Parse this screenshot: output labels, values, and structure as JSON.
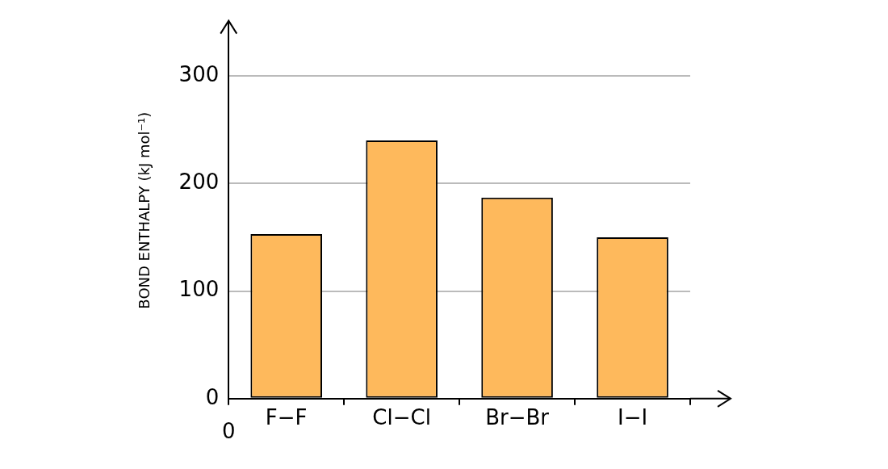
{
  "chart_data": {
    "type": "bar",
    "y_label": "BOND ENTHALPY (kJ mol⁻¹)",
    "categories": [
      "F−F",
      "Cl−Cl",
      "Br−Br",
      "I−I"
    ],
    "values": [
      153,
      240,
      187,
      150
    ],
    "color": "#feb95c",
    "ylim": [
      0,
      350
    ],
    "yticks": [
      0,
      100,
      200,
      300
    ],
    "grid": true,
    "annotations": [
      "0"
    ]
  }
}
